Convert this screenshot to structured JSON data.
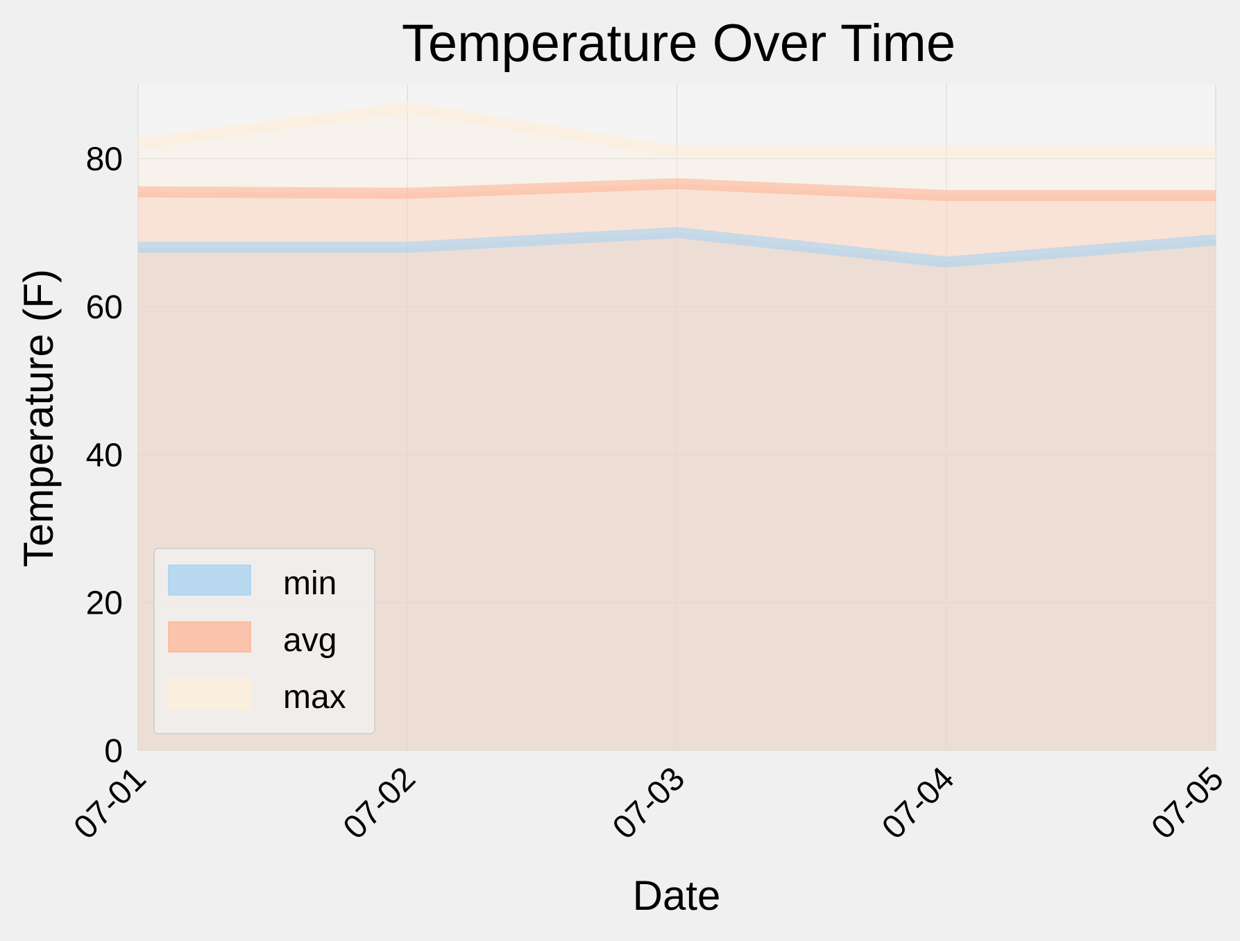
{
  "chart_data": {
    "type": "area",
    "title": "Temperature Over Time",
    "xlabel": "Date",
    "ylabel": "Temperature (F)",
    "categories": [
      "07-01",
      "07-02",
      "07-03",
      "07-04",
      "07-05"
    ],
    "series": [
      {
        "name": "min",
        "values": [
          68.0,
          68.0,
          70.0,
          66.0,
          69.0
        ],
        "color": "#a6d2f2"
      },
      {
        "name": "avg",
        "values": [
          75.5,
          75.3,
          76.6,
          75.0,
          75.0
        ],
        "color": "#fdb597"
      },
      {
        "name": "max",
        "values": [
          82.0,
          87.0,
          81.0,
          81.0,
          81.0
        ],
        "color": "#fdefd9"
      }
    ],
    "ylim": [
      0,
      90
    ],
    "yticks": [
      0,
      20,
      40,
      60,
      80
    ],
    "grid": true,
    "legend_position": "lower-left"
  }
}
